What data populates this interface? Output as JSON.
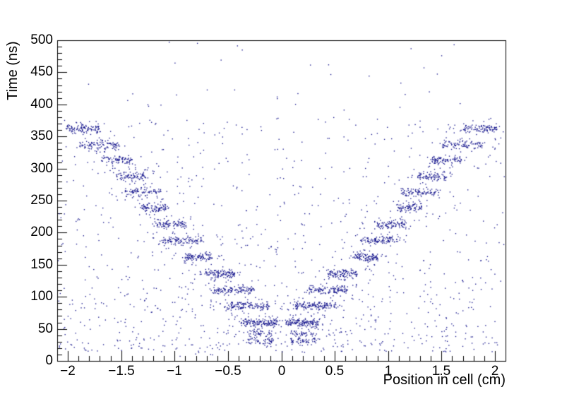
{
  "chart_data": {
    "type": "scatter",
    "title": "",
    "xlabel": "Position in cell (cm)",
    "ylabel": "Time (ns)",
    "xlim": [
      -2.1,
      2.1
    ],
    "ylim": [
      0,
      500
    ],
    "grid": false,
    "legend": false,
    "axis_color": "#000000",
    "label_color": "#000000",
    "marker_color": "#15158c",
    "marker_size_px": 1.35,
    "x_ticks": {
      "values": [
        -2,
        -1.5,
        -1,
        -0.5,
        0,
        0.5,
        1,
        1.5,
        2
      ],
      "labels": [
        "−2",
        "−1.5",
        "−1",
        "−0.5",
        "0",
        "0.5",
        "1",
        "1.5",
        "2"
      ],
      "minor_step": 0.1
    },
    "y_ticks": {
      "values": [
        0,
        50,
        100,
        150,
        200,
        250,
        300,
        350,
        400,
        450,
        500
      ],
      "labels": [
        "0",
        "50",
        "100",
        "150",
        "200",
        "250",
        "300",
        "350",
        "400",
        "450",
        "500"
      ],
      "minor_step": 10
    },
    "seed": 1337,
    "noise_layers": [
      {
        "n": 170,
        "x": [
          -2.09,
          2.09
        ],
        "t": [
          2,
          497
        ],
        "bias": 1.0
      },
      {
        "n": 700,
        "x": [
          -2.09,
          2.09
        ],
        "t": [
          14,
          380
        ],
        "bias": 1.3
      },
      {
        "n": 150,
        "x": [
          -2.09,
          2.09
        ],
        "t": [
          15,
          120
        ],
        "bias": 1.0
      }
    ],
    "bands_mirrored_in_x": true,
    "bands": [
      {
        "t": 31,
        "t_halfwidth": 4.0,
        "x_center": 0.2,
        "x_halfwidth": 0.13,
        "n_per_side": 55
      },
      {
        "t": 43,
        "t_halfwidth": 3.5,
        "x_center": 0.2,
        "x_halfwidth": 0.11,
        "n_per_side": 45
      },
      {
        "t": 60,
        "t_halfwidth": 4.5,
        "x_center": 0.2,
        "x_halfwidth": 0.16,
        "n_per_side": 150
      },
      {
        "t": 86,
        "t_halfwidth": 4.5,
        "x_center": 0.31,
        "x_halfwidth": 0.2,
        "n_per_side": 150
      },
      {
        "t": 111,
        "t_halfwidth": 4.5,
        "x_center": 0.45,
        "x_halfwidth": 0.19,
        "n_per_side": 130
      },
      {
        "t": 136,
        "t_halfwidth": 4.5,
        "x_center": 0.57,
        "x_halfwidth": 0.14,
        "n_per_side": 120
      },
      {
        "t": 162,
        "t_halfwidth": 4.5,
        "x_center": 0.78,
        "x_halfwidth": 0.13,
        "n_per_side": 110
      },
      {
        "t": 188,
        "t_halfwidth": 5.0,
        "x_center": 0.93,
        "x_halfwidth": 0.19,
        "n_per_side": 120
      },
      {
        "t": 213,
        "t_halfwidth": 5.0,
        "x_center": 1.03,
        "x_halfwidth": 0.14,
        "n_per_side": 100
      },
      {
        "t": 238,
        "t_halfwidth": 5.0,
        "x_center": 1.2,
        "x_halfwidth": 0.12,
        "n_per_side": 90
      },
      {
        "t": 263,
        "t_halfwidth": 5.0,
        "x_center": 1.3,
        "x_halfwidth": 0.18,
        "n_per_side": 100
      },
      {
        "t": 288,
        "t_halfwidth": 5.0,
        "x_center": 1.41,
        "x_halfwidth": 0.14,
        "n_per_side": 95
      },
      {
        "t": 313,
        "t_halfwidth": 5.0,
        "x_center": 1.54,
        "x_halfwidth": 0.15,
        "n_per_side": 95
      },
      {
        "t": 337,
        "t_halfwidth": 5.0,
        "x_center": 1.7,
        "x_halfwidth": 0.19,
        "n_per_side": 105
      },
      {
        "t": 362,
        "t_halfwidth": 5.0,
        "x_center": 1.86,
        "x_halfwidth": 0.16,
        "n_per_side": 115
      }
    ]
  }
}
